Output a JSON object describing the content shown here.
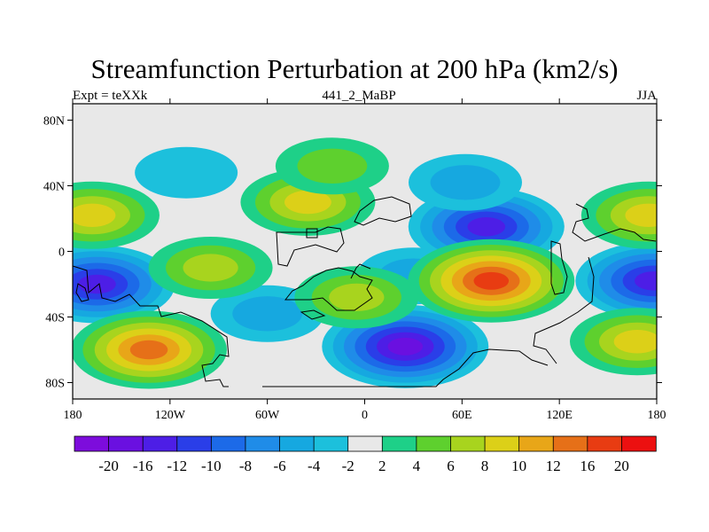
{
  "figure": {
    "title": "Streamfunction Perturbation at 200 hPa (km2/s)",
    "left_subtitle": "Expt = teXXk",
    "center_subtitle": "441_2_MaBP",
    "right_subtitle": "JJA"
  },
  "axes": {
    "lat_ticks": [
      {
        "value": 80,
        "label": "80N"
      },
      {
        "value": 40,
        "label": "40N"
      },
      {
        "value": 0,
        "label": "0"
      },
      {
        "value": -40,
        "label": "40S"
      },
      {
        "value": -80,
        "label": "80S"
      }
    ],
    "lon_ticks": [
      {
        "value": -180,
        "label": "180"
      },
      {
        "value": -120,
        "label": "120W"
      },
      {
        "value": -60,
        "label": "60W"
      },
      {
        "value": 0,
        "label": "0"
      },
      {
        "value": 60,
        "label": "60E"
      },
      {
        "value": 120,
        "label": "120E"
      },
      {
        "value": 180,
        "label": "180"
      }
    ]
  },
  "colorbar": {
    "colors": [
      "#7d0cdc",
      "#6a10e0",
      "#4d1ee6",
      "#2a3ee8",
      "#1c6ae8",
      "#1f8ce8",
      "#16a8e0",
      "#1cc0dc",
      "#e8e8e8",
      "#1ed088",
      "#5ed02e",
      "#a8d41e",
      "#dcd018",
      "#e8a618",
      "#e67018",
      "#e83c12",
      "#ec1010"
    ],
    "labels": [
      "-20",
      "-16",
      "-12",
      "-10",
      "-8",
      "-6",
      "-4",
      "-2",
      "2",
      "4",
      "6",
      "8",
      "10",
      "12",
      "16",
      "20"
    ]
  },
  "chart_data": {
    "type": "filled-contour-map",
    "title": "Streamfunction Perturbation at 200 hPa (km2/s)",
    "variable": "streamfunction perturbation",
    "units": "km2/s",
    "level_hPa": 200,
    "season": "JJA",
    "experiment": "teXXk",
    "run": "441_2_MaBP",
    "xlim": [
      -180,
      180
    ],
    "ylim": [
      -90,
      90
    ],
    "contour_levels": [
      -20,
      -16,
      -12,
      -10,
      -8,
      -6,
      -4,
      -2,
      2,
      4,
      6,
      8,
      10,
      12,
      16,
      20
    ],
    "features": [
      {
        "lon": -165,
        "lat": -20,
        "value": -16,
        "kind": "low"
      },
      {
        "lon": 178,
        "lat": -18,
        "value": -14,
        "kind": "low"
      },
      {
        "lon": 25,
        "lat": -58,
        "value": -18,
        "kind": "low"
      },
      {
        "lon": 75,
        "lat": 15,
        "value": -16,
        "kind": "low"
      },
      {
        "lon": 62,
        "lat": 42,
        "value": -6,
        "kind": "low"
      },
      {
        "lon": -60,
        "lat": -38,
        "value": -5,
        "kind": "low"
      },
      {
        "lon": 30,
        "lat": -15,
        "value": -5,
        "kind": "low"
      },
      {
        "lon": -110,
        "lat": 48,
        "value": -4,
        "kind": "low"
      },
      {
        "lon": -133,
        "lat": -60,
        "value": 14,
        "kind": "high"
      },
      {
        "lon": 78,
        "lat": -18,
        "value": 19,
        "kind": "high"
      },
      {
        "lon": -168,
        "lat": 22,
        "value": 9,
        "kind": "high"
      },
      {
        "lon": 175,
        "lat": 22,
        "value": 9,
        "kind": "high"
      },
      {
        "lon": -35,
        "lat": 30,
        "value": 8,
        "kind": "high"
      },
      {
        "lon": -95,
        "lat": -10,
        "value": 7,
        "kind": "high"
      },
      {
        "lon": 168,
        "lat": -55,
        "value": 8,
        "kind": "high"
      },
      {
        "lon": -5,
        "lat": -28,
        "value": 7,
        "kind": "high"
      },
      {
        "lon": -20,
        "lat": 52,
        "value": 5,
        "kind": "high"
      }
    ]
  }
}
